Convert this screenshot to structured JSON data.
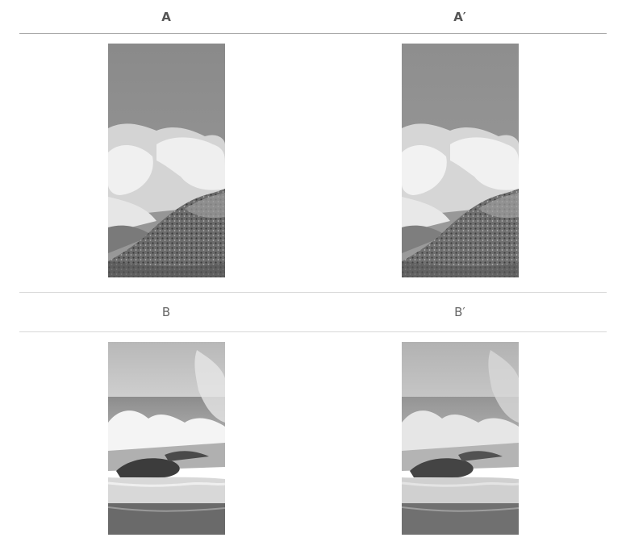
{
  "headers": {
    "left": "A",
    "right": "A′"
  },
  "labels": {
    "left": "B",
    "right": "B′"
  },
  "images": {
    "a_left": "mountain-clouds-photo",
    "a_right": "mountain-clouds-photo-filtered",
    "b_left": "ocean-wave-photo",
    "b_right": "ocean-wave-photo-filtered"
  },
  "colors": {
    "rule_dark": "#aaaaaa",
    "rule_light": "#d8d8d8",
    "text": "#555555"
  }
}
